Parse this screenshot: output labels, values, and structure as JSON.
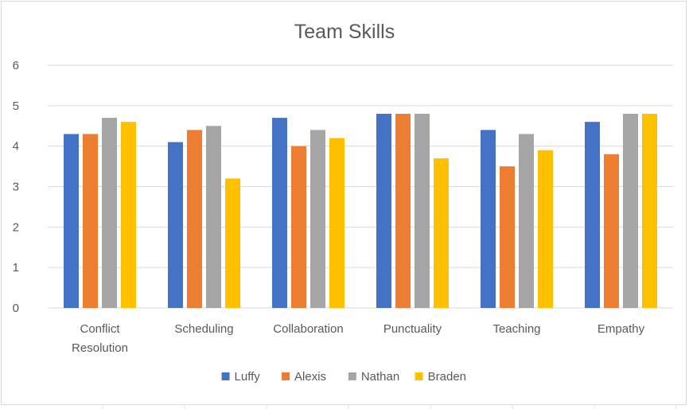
{
  "chart_data": {
    "type": "bar",
    "title": "Team Skills",
    "categories": [
      [
        "Conflict",
        "Resolution"
      ],
      [
        "Scheduling"
      ],
      [
        "Collaboration"
      ],
      [
        "Punctuality"
      ],
      [
        "Teaching"
      ],
      [
        "Empathy"
      ]
    ],
    "series": [
      {
        "name": "Luffy",
        "color": "#4472c4",
        "values": [
          4.3,
          4.1,
          4.7,
          4.8,
          4.4,
          4.6
        ]
      },
      {
        "name": "Alexis",
        "color": "#ed7d31",
        "values": [
          4.3,
          4.4,
          4.0,
          4.8,
          3.5,
          3.8
        ]
      },
      {
        "name": "Nathan",
        "color": "#a5a5a5",
        "values": [
          4.7,
          4.5,
          4.4,
          4.8,
          4.3,
          4.8
        ]
      },
      {
        "name": "Braden",
        "color": "#ffc000",
        "values": [
          4.6,
          3.2,
          4.2,
          3.7,
          3.9,
          4.8
        ]
      }
    ],
    "ylim": [
      0,
      6
    ],
    "yticks": [
      0,
      1,
      2,
      3,
      4,
      5,
      6
    ],
    "grid": true,
    "legend": "bottom",
    "xlabel": "",
    "ylabel": ""
  }
}
